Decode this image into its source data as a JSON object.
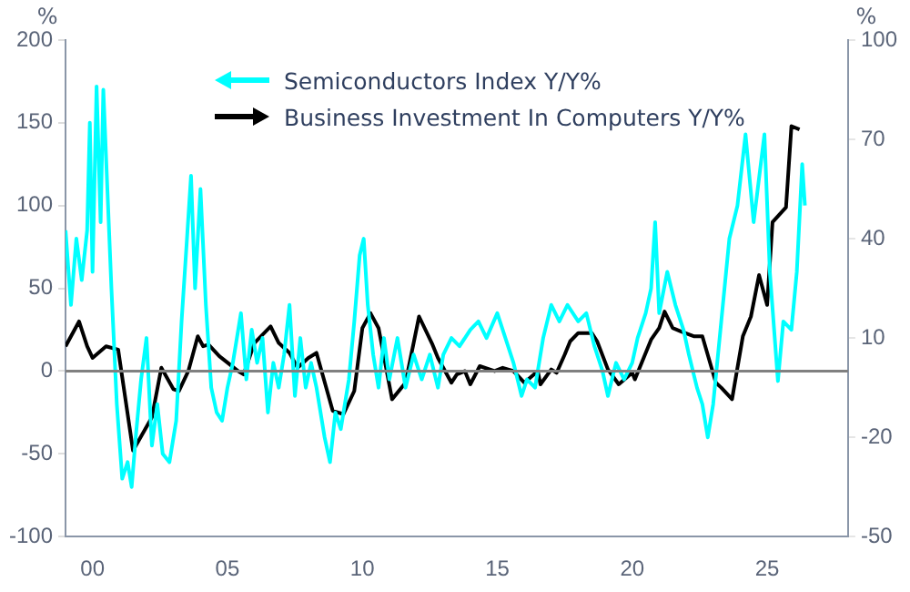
{
  "chart_data": {
    "type": "line",
    "ylabel": "%",
    "y2label": "%",
    "legend": "top",
    "marker": "none",
    "grid": false,
    "xlim": [
      1999,
      2028
    ],
    "xticks": [
      {
        "value": 2000,
        "label": "00"
      },
      {
        "value": 2005,
        "label": "05"
      },
      {
        "value": 2010,
        "label": "10"
      },
      {
        "value": 2015,
        "label": "15"
      },
      {
        "value": 2020,
        "label": "20"
      },
      {
        "value": 2025,
        "label": "25"
      }
    ],
    "ylim": [
      -100,
      200
    ],
    "yticks": [
      -100,
      -50,
      0,
      50,
      100,
      150,
      200
    ],
    "y2lim": [
      -50,
      100
    ],
    "y2ticks": [
      -50,
      -20,
      10,
      40,
      70,
      100
    ],
    "ref_lines": [
      {
        "axis": "y",
        "value": 0,
        "color": "#808080"
      }
    ],
    "series": [
      {
        "name": "Semiconductors Index Y/Y%",
        "color": "#00ffff",
        "axis": "y",
        "x": [
          1999.0,
          1999.2,
          1999.4,
          1999.6,
          1999.8,
          1999.9,
          2000.0,
          2000.15,
          2000.3,
          2000.4,
          2000.55,
          2000.7,
          2000.9,
          2001.1,
          2001.3,
          2001.45,
          2001.6,
          2001.8,
          2002.0,
          2002.2,
          2002.4,
          2002.6,
          2002.85,
          2003.1,
          2003.3,
          2003.5,
          2003.65,
          2003.8,
          2004.0,
          2004.2,
          2004.4,
          2004.6,
          2004.8,
          2005.0,
          2005.2,
          2005.5,
          2005.7,
          2005.9,
          2006.1,
          2006.3,
          2006.5,
          2006.7,
          2006.9,
          2007.1,
          2007.3,
          2007.5,
          2007.7,
          2007.9,
          2008.1,
          2008.3,
          2008.6,
          2008.8,
          2009.0,
          2009.2,
          2009.5,
          2009.7,
          2009.9,
          2010.05,
          2010.2,
          2010.4,
          2010.6,
          2010.8,
          2011.0,
          2011.3,
          2011.6,
          2011.9,
          2012.2,
          2012.5,
          2012.8,
          2013.0,
          2013.3,
          2013.6,
          2014.0,
          2014.3,
          2014.6,
          2015.0,
          2015.3,
          2015.6,
          2015.9,
          2016.1,
          2016.4,
          2016.7,
          2017.0,
          2017.3,
          2017.6,
          2018.0,
          2018.3,
          2018.6,
          2018.9,
          2019.1,
          2019.4,
          2019.7,
          2020.0,
          2020.2,
          2020.5,
          2020.7,
          2020.85,
          2021.0,
          2021.3,
          2021.6,
          2021.9,
          2022.1,
          2022.4,
          2022.6,
          2022.8,
          2023.0,
          2023.3,
          2023.6,
          2023.9,
          2024.2,
          2024.5,
          2024.9,
          2025.1,
          2025.4,
          2025.6,
          2025.9,
          2026.1,
          2026.3,
          2026.4
        ],
        "values": [
          85,
          40,
          80,
          55,
          85,
          150,
          60,
          172,
          90,
          170,
          110,
          50,
          -20,
          -65,
          -55,
          -70,
          -40,
          -5,
          20,
          -45,
          -20,
          -50,
          -55,
          -30,
          30,
          80,
          118,
          50,
          110,
          40,
          -10,
          -25,
          -30,
          -10,
          5,
          35,
          -5,
          25,
          5,
          20,
          -25,
          5,
          -10,
          10,
          40,
          -15,
          20,
          -10,
          5,
          -10,
          -40,
          -55,
          -25,
          -35,
          -5,
          30,
          70,
          80,
          40,
          10,
          -10,
          20,
          -5,
          20,
          -10,
          10,
          -5,
          10,
          -10,
          10,
          20,
          15,
          25,
          30,
          20,
          35,
          20,
          5,
          -15,
          -5,
          -10,
          20,
          40,
          30,
          40,
          30,
          35,
          15,
          0,
          -15,
          5,
          -5,
          5,
          20,
          35,
          50,
          90,
          35,
          60,
          40,
          25,
          10,
          -10,
          -20,
          -40,
          -20,
          30,
          80,
          100,
          143,
          90,
          143,
          60,
          -6,
          30,
          25,
          60,
          125,
          100
        ]
      },
      {
        "name": "Business Investment In Computers Y/Y%",
        "color": "#000000",
        "axis": "y2",
        "x": [
          1999.0,
          1999.5,
          1999.8,
          2000.0,
          2000.5,
          2000.95,
          2001.5,
          2002.2,
          2002.55,
          2003.0,
          2003.2,
          2003.55,
          2003.9,
          2004.1,
          2004.3,
          2004.7,
          2005.4,
          2005.6,
          2006.0,
          2006.6,
          2006.9,
          2007.3,
          2007.6,
          2008.0,
          2008.3,
          2008.9,
          2009.3,
          2009.7,
          2010.0,
          2010.3,
          2010.6,
          2011.1,
          2011.6,
          2012.1,
          2012.6,
          2012.8,
          2013.3,
          2013.5,
          2013.8,
          2014.0,
          2014.35,
          2014.9,
          2015.2,
          2015.6,
          2016.0,
          2016.5,
          2016.6,
          2017.0,
          2017.2,
          2017.5,
          2017.7,
          2018.0,
          2018.5,
          2018.7,
          2019.1,
          2019.5,
          2020.0,
          2020.1,
          2020.7,
          2021.0,
          2021.2,
          2021.5,
          2021.8,
          2022.3,
          2022.6,
          2023.1,
          2023.3,
          2023.7,
          2024.1,
          2024.4,
          2024.7,
          2025.0,
          2025.2,
          2025.7,
          2025.9,
          2026.2
        ],
        "values": [
          7.5,
          15,
          7.5,
          4,
          7.5,
          6.5,
          -24,
          -14,
          1,
          -5.5,
          -6,
          0,
          10.5,
          7.5,
          8,
          4.5,
          0,
          -1,
          8.5,
          13.5,
          8.5,
          5.5,
          1,
          4,
          5.5,
          -12,
          -13,
          -6,
          13,
          17.5,
          13,
          -8.5,
          -3.5,
          16.5,
          8,
          4,
          -3.5,
          -1,
          0,
          -4,
          1.5,
          0,
          1,
          0,
          -3.5,
          0,
          -4,
          0.5,
          -0.5,
          5,
          9,
          11.5,
          11.5,
          9,
          0.5,
          -4,
          -0.5,
          -2.5,
          9.5,
          13,
          18,
          13,
          12,
          10.5,
          10.5,
          -3.5,
          -5,
          -8.5,
          10.5,
          16.5,
          29,
          20,
          45,
          49.5,
          74,
          73
        ]
      }
    ]
  }
}
